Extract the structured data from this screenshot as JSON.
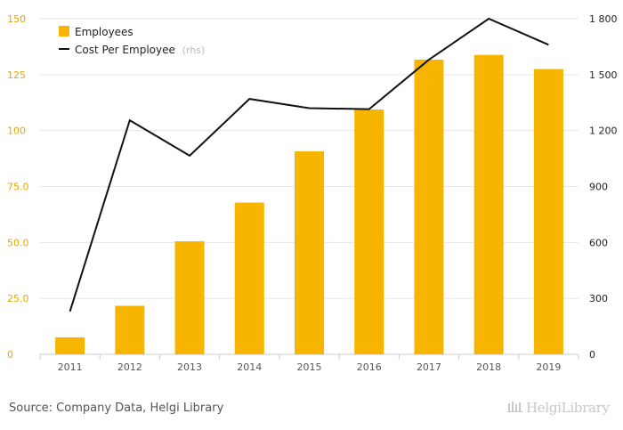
{
  "chart_data": {
    "type": "bar+line",
    "categories": [
      "2011",
      "2012",
      "2013",
      "2014",
      "2015",
      "2016",
      "2017",
      "2018",
      "2019"
    ],
    "series": [
      {
        "name": "Employees",
        "type": "bar",
        "axis": "left",
        "color": "#f8b500",
        "values": [
          7.6,
          21.7,
          50.5,
          67.8,
          90.7,
          109.4,
          131.7,
          133.8,
          127.5
        ]
      },
      {
        "name": "Cost Per Employee",
        "suffix": "(rhs)",
        "type": "line",
        "axis": "right",
        "color": "#111111",
        "values": [
          230,
          1255,
          1065,
          1370,
          1320,
          1315,
          1580,
          1800,
          1660
        ]
      }
    ],
    "y_left": {
      "min": 0,
      "max": 150,
      "ticks": [
        "0",
        "25.0",
        "50.0",
        "75.0",
        "100",
        "125",
        "150"
      ],
      "tick_values": [
        0,
        25,
        50,
        75,
        100,
        125,
        150
      ]
    },
    "y_right": {
      "min": 0,
      "max": 1800,
      "ticks": [
        "0",
        "300",
        "600",
        "900",
        "1 200",
        "1 500",
        "1 800"
      ],
      "tick_values": [
        0,
        300,
        600,
        900,
        1200,
        1500,
        1800
      ]
    },
    "legend_position": "top-left",
    "grid": true
  },
  "footer": {
    "source": "Source: Company Data, Helgi Library",
    "brand": "HelgiLibrary"
  }
}
